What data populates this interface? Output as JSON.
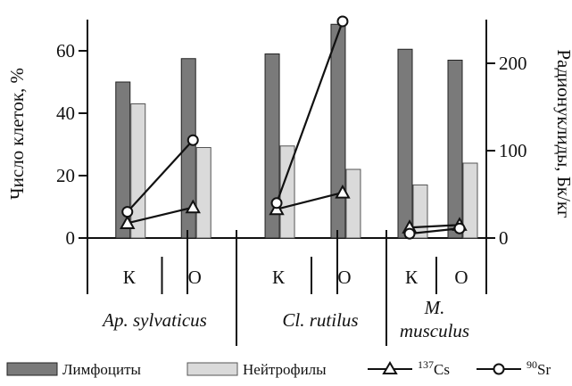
{
  "chart_data": {
    "type": "bar",
    "groups": [
      {
        "label_lines": [
          "Ap. sylvaticus"
        ],
        "categories": [
          "К",
          "О"
        ]
      },
      {
        "label_lines": [
          "Cl. rutilus"
        ],
        "categories": [
          "К",
          "О"
        ]
      },
      {
        "label_lines": [
          "M.",
          "musculus"
        ],
        "categories": [
          "К",
          "О"
        ]
      }
    ],
    "series": [
      {
        "name": "Лимфоциты",
        "kind": "bar",
        "axis": "left",
        "color": "#7a7a7a",
        "values": [
          50,
          57.5,
          59,
          68.5,
          60.5,
          57
        ]
      },
      {
        "name": "Нейтрофилы",
        "kind": "bar",
        "axis": "left",
        "color": "#dadada",
        "values": [
          43,
          29,
          29.5,
          22,
          17,
          24
        ]
      },
      {
        "name_sup": "137",
        "name_base": "Cs",
        "kind": "line",
        "marker": "triangle",
        "axis": "right",
        "values": [
          17,
          35,
          33,
          52,
          12,
          15
        ]
      },
      {
        "name_sup": "90",
        "name_base": "Sr",
        "kind": "line",
        "marker": "circle",
        "axis": "right",
        "values": [
          30,
          112,
          40,
          248,
          5,
          11
        ]
      }
    ],
    "y_left": {
      "label": "Число клеток, %",
      "min": 0,
      "max": 70,
      "ticks": [
        0,
        20,
        40,
        60
      ]
    },
    "y_right": {
      "label": "Радионуклиды, Бк/кг",
      "min": 0,
      "max": 250,
      "ticks": [
        0,
        100,
        200
      ]
    },
    "legend": {
      "placement": "bottom"
    },
    "grid": false
  }
}
